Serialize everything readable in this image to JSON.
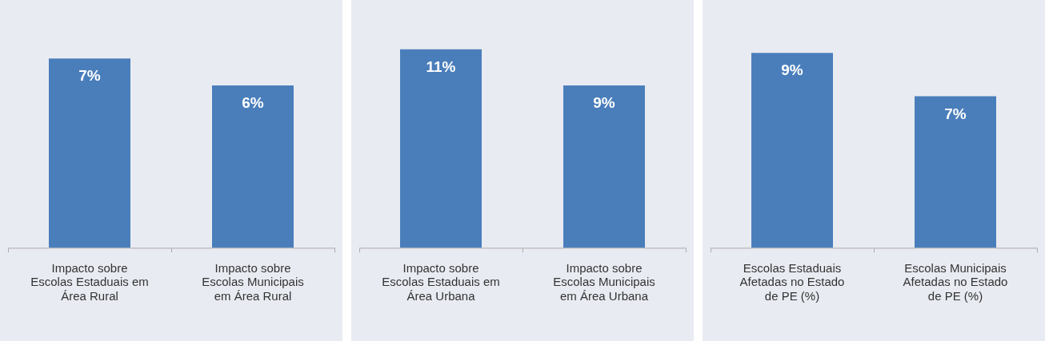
{
  "chart_data": [
    {
      "type": "bar",
      "categories": [
        "Impacto sobre Escolas Estaduais em Área Rural",
        "Impacto sobre Escolas Municipais em Área Rural"
      ],
      "values": [
        7,
        6
      ],
      "value_labels": [
        "7%",
        "6%"
      ],
      "color": "#4a7ebb",
      "grid": false,
      "legend": false
    },
    {
      "type": "bar",
      "categories": [
        "Impacto sobre Escolas Estaduais em Área Urbana",
        "Impacto sobre Escolas Municipais em Área Urbana"
      ],
      "values": [
        11,
        9
      ],
      "value_labels": [
        "11%",
        "9%"
      ],
      "color": "#4a7ebb",
      "grid": false,
      "legend": false
    },
    {
      "type": "bar",
      "categories": [
        "Escolas Estaduais Afetadas no Estado de PE (%)",
        "Escolas Municipais Afetadas no Estado de PE (%)"
      ],
      "values": [
        9,
        7
      ],
      "value_labels": [
        "9%",
        "7%"
      ],
      "color": "#4a7ebb",
      "grid": false,
      "legend": false
    }
  ]
}
